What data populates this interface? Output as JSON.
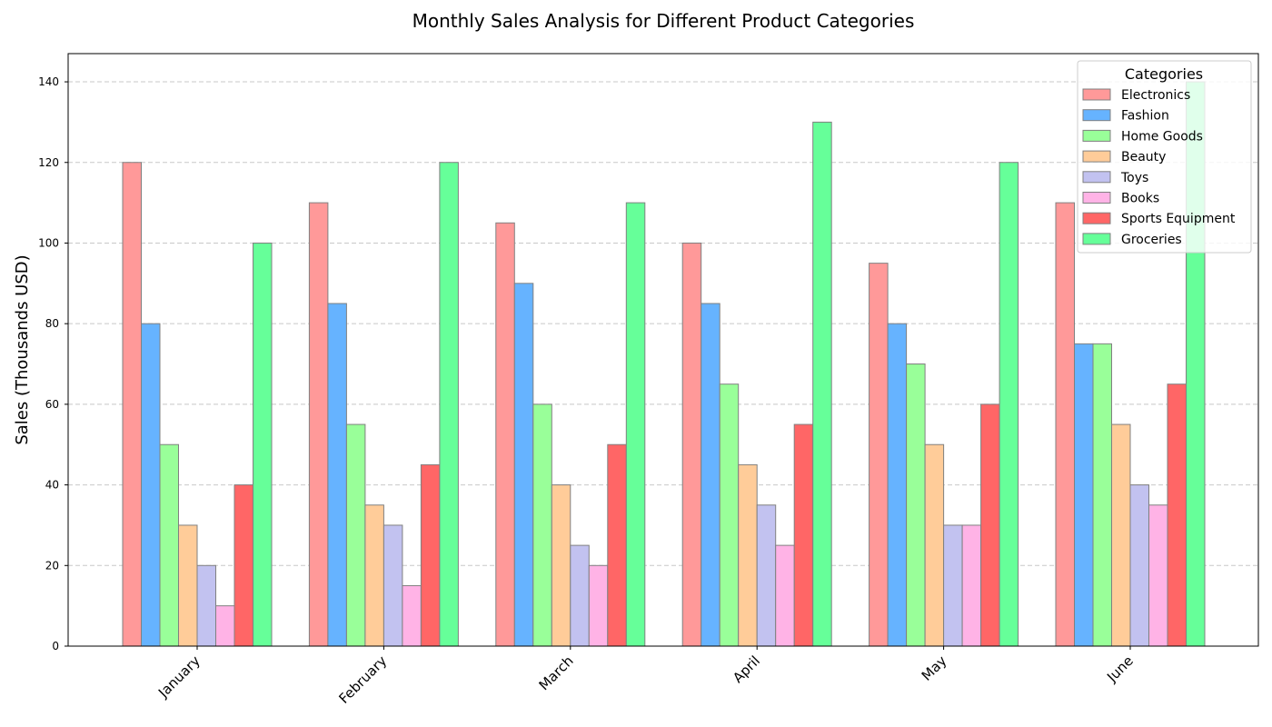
{
  "chart_data": {
    "type": "bar",
    "title": "Monthly Sales Analysis for Different Product Categories",
    "xlabel": "",
    "ylabel": "Sales (Thousands USD)",
    "categories": [
      "January",
      "February",
      "March",
      "April",
      "May",
      "June"
    ],
    "ylim": [
      0,
      147
    ],
    "yticks": [
      0,
      20,
      40,
      60,
      80,
      100,
      120,
      140
    ],
    "grid": "y-dashed",
    "legend": {
      "title": "Categories",
      "placement": "top-right"
    },
    "series": [
      {
        "name": "Electronics",
        "color": "#ff9999",
        "values": [
          120,
          110,
          105,
          100,
          95,
          110
        ]
      },
      {
        "name": "Fashion",
        "color": "#66b3ff",
        "values": [
          80,
          85,
          90,
          85,
          80,
          75
        ]
      },
      {
        "name": "Home Goods",
        "color": "#99ff99",
        "values": [
          50,
          55,
          60,
          65,
          70,
          75
        ]
      },
      {
        "name": "Beauty",
        "color": "#ffcc99",
        "values": [
          30,
          35,
          40,
          45,
          50,
          55
        ]
      },
      {
        "name": "Toys",
        "color": "#c2c2f0",
        "values": [
          20,
          30,
          25,
          35,
          30,
          40
        ]
      },
      {
        "name": "Books",
        "color": "#ffb3e6",
        "values": [
          10,
          15,
          20,
          25,
          30,
          35
        ]
      },
      {
        "name": "Sports Equipment",
        "color": "#ff6666",
        "values": [
          40,
          45,
          50,
          55,
          60,
          65
        ]
      },
      {
        "name": "Groceries",
        "color": "#66ff99",
        "values": [
          100,
          120,
          110,
          130,
          120,
          140
        ]
      }
    ]
  }
}
